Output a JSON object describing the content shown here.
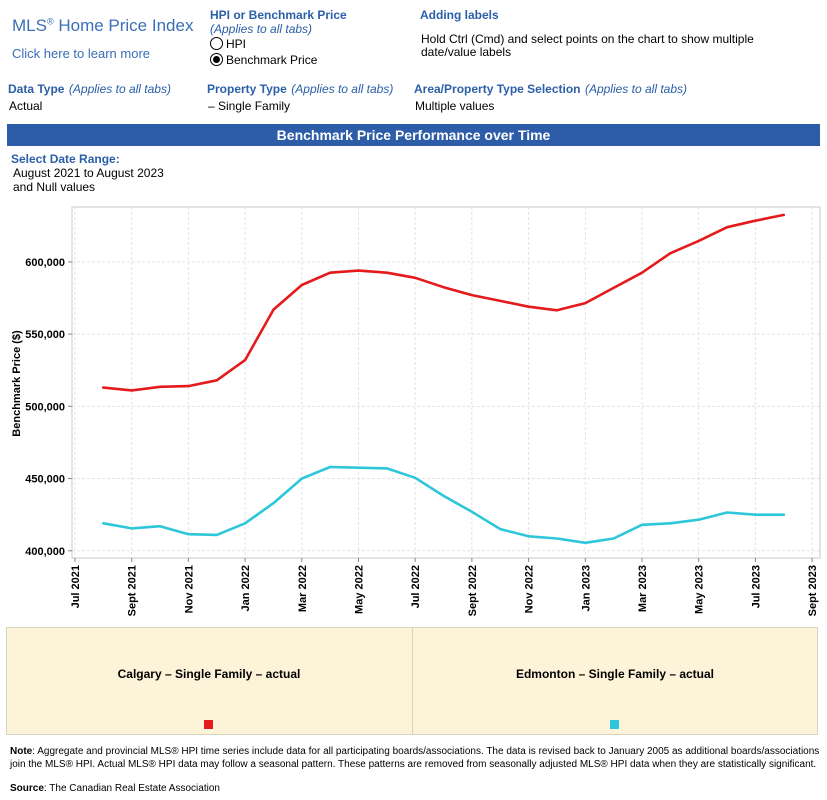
{
  "header": {
    "logo_title": "MLS",
    "logo_sup": "®",
    "logo_rest": " Home Price Index",
    "learn_more": "Click here to learn more"
  },
  "hpi_toggle": {
    "title": "HPI or Benchmark Price",
    "subtitle": "(Applies to all tabs)",
    "options": [
      {
        "label": "HPI",
        "selected": false
      },
      {
        "label": "Benchmark Price",
        "selected": true
      }
    ]
  },
  "adding_labels": {
    "title": "Adding labels",
    "text_line1": "Hold Ctrl (Cmd) and select points on the chart to show multiple",
    "text_line2": "date/value labels"
  },
  "filters": {
    "data_type": {
      "title": "Data Type",
      "note": "(Applies to all tabs)",
      "value": "Actual"
    },
    "property_type": {
      "title": "Property Type",
      "note": "(Applies to all tabs)",
      "value": "– Single Family"
    },
    "area": {
      "title": "Area/Property Type Selection",
      "note": "(Applies to all tabs)",
      "value": "Multiple values"
    }
  },
  "banner_title": "Benchmark Price Performance over Time",
  "date_range": {
    "title": "Select Date Range:",
    "line1": "August 2021 to August 2023",
    "line2": "and Null values"
  },
  "legend": {
    "items": [
      {
        "label": "Calgary – Single Family – actual",
        "color": "#e41a1c"
      },
      {
        "label": "Edmonton – Single Family – actual",
        "color": "#2ec7d9"
      }
    ]
  },
  "footer": {
    "note_label": "Note",
    "note_line1": ": Aggregate and provincial MLS® HPI time series include data for all participating boards/associations. The data is revised back to January 2005 as additional boards/associations",
    "note_line2": "join the MLS® HPI. Actual MLS® HPI data may follow a seasonal pattern. These patterns are removed from seasonally adjusted MLS® HPI data when they are statistically significant.",
    "source_label": "Source",
    "source_text": ": The Canadian Real Estate Association"
  },
  "chart_data": {
    "type": "line",
    "title": "Benchmark Price Performance over Time",
    "xlabel": "",
    "ylabel": "Benchmark Price ($)",
    "ylim": [
      395000,
      638000
    ],
    "yticks": [
      400000,
      450000,
      500000,
      550000,
      600000
    ],
    "ytick_labels": [
      "400,000",
      "450,000",
      "500,000",
      "550,000",
      "600,000"
    ],
    "xticks": [
      "Jul 2021",
      "Sept 2021",
      "Nov 2021",
      "Jan 2022",
      "Mar 2022",
      "May 2022",
      "Jul 2022",
      "Sept 2022",
      "Nov 2022",
      "Jan 2023",
      "Mar 2023",
      "May 2023",
      "Jul 2023",
      "Sept 2023"
    ],
    "grid": true,
    "x": [
      "Aug 2021",
      "Sep 2021",
      "Oct 2021",
      "Nov 2021",
      "Dec 2021",
      "Jan 2022",
      "Feb 2022",
      "Mar 2022",
      "Apr 2022",
      "May 2022",
      "Jun 2022",
      "Jul 2022",
      "Aug 2022",
      "Sep 2022",
      "Oct 2022",
      "Nov 2022",
      "Dec 2022",
      "Jan 2023",
      "Feb 2023",
      "Mar 2023",
      "Apr 2023",
      "May 2023",
      "Jun 2023",
      "Jul 2023",
      "Aug 2023"
    ],
    "series": [
      {
        "name": "Calgary – Single Family – actual",
        "color": "#e41a1c",
        "values": [
          513000,
          511000,
          513500,
          514000,
          518000,
          532000,
          567000,
          584000,
          592500,
          594000,
          592500,
          589000,
          582500,
          577000,
          573000,
          569000,
          566500,
          571500,
          582000,
          592500,
          606000,
          614500,
          624000,
          628500,
          632500
        ]
      },
      {
        "name": "Edmonton – Single Family – actual",
        "color": "#2ec7d9",
        "values": [
          419000,
          415500,
          417000,
          411500,
          411000,
          419000,
          433000,
          450000,
          458000,
          457500,
          457000,
          450500,
          438000,
          427000,
          415000,
          410000,
          408500,
          405500,
          408500,
          418000,
          419000,
          421500,
          426500,
          425000,
          425000
        ]
      }
    ]
  }
}
